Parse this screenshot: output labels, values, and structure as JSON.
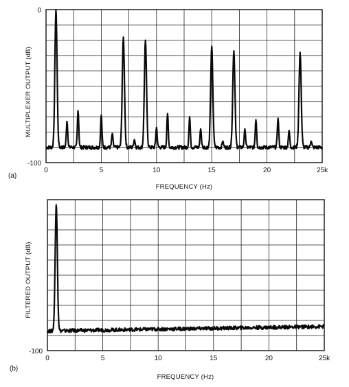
{
  "chart_data": [
    {
      "panel_label": "(a)",
      "type": "line",
      "xlabel": "FREQUENCY (Hz)",
      "ylabel": "MULTIPLEXER OUTPUT (dB)",
      "x_ticks": [
        "0",
        "5",
        "10",
        "15",
        "20",
        "25k"
      ],
      "y_ticks": [
        "0",
        "-100"
      ],
      "xlim": [
        0,
        25
      ],
      "ylim": [
        -100,
        0
      ],
      "grid": true,
      "noise_floor_db": -90,
      "peaks": [
        {
          "x": 0.9,
          "y": 0
        },
        {
          "x": 1.9,
          "y": -73
        },
        {
          "x": 2.9,
          "y": -66
        },
        {
          "x": 5.0,
          "y": -69
        },
        {
          "x": 6.0,
          "y": -81
        },
        {
          "x": 7.0,
          "y": -18
        },
        {
          "x": 8.0,
          "y": -85
        },
        {
          "x": 9.0,
          "y": -20
        },
        {
          "x": 10.0,
          "y": -77
        },
        {
          "x": 11.0,
          "y": -68
        },
        {
          "x": 13.0,
          "y": -70
        },
        {
          "x": 14.0,
          "y": -78
        },
        {
          "x": 15.0,
          "y": -24
        },
        {
          "x": 16.0,
          "y": -86
        },
        {
          "x": 17.0,
          "y": -27
        },
        {
          "x": 18.0,
          "y": -78
        },
        {
          "x": 19.0,
          "y": -72
        },
        {
          "x": 21.0,
          "y": -71
        },
        {
          "x": 22.0,
          "y": -79
        },
        {
          "x": 23.0,
          "y": -28
        },
        {
          "x": 24.0,
          "y": -86
        }
      ]
    },
    {
      "panel_label": "(b)",
      "type": "line",
      "xlabel": "FREQUENCY (Hz)",
      "ylabel": "FILTERED OUTPUT (dB)",
      "x_ticks": [
        "0",
        "5",
        "10",
        "15",
        "20",
        "25k"
      ],
      "y_ticks": [
        "-100"
      ],
      "xlim": [
        0,
        25
      ],
      "ylim": [
        -100,
        0
      ],
      "grid": true,
      "noise_floor_db_start": -87,
      "noise_floor_db_end": -84,
      "peaks": [
        {
          "x": 0.8,
          "y": -3
        }
      ]
    }
  ]
}
